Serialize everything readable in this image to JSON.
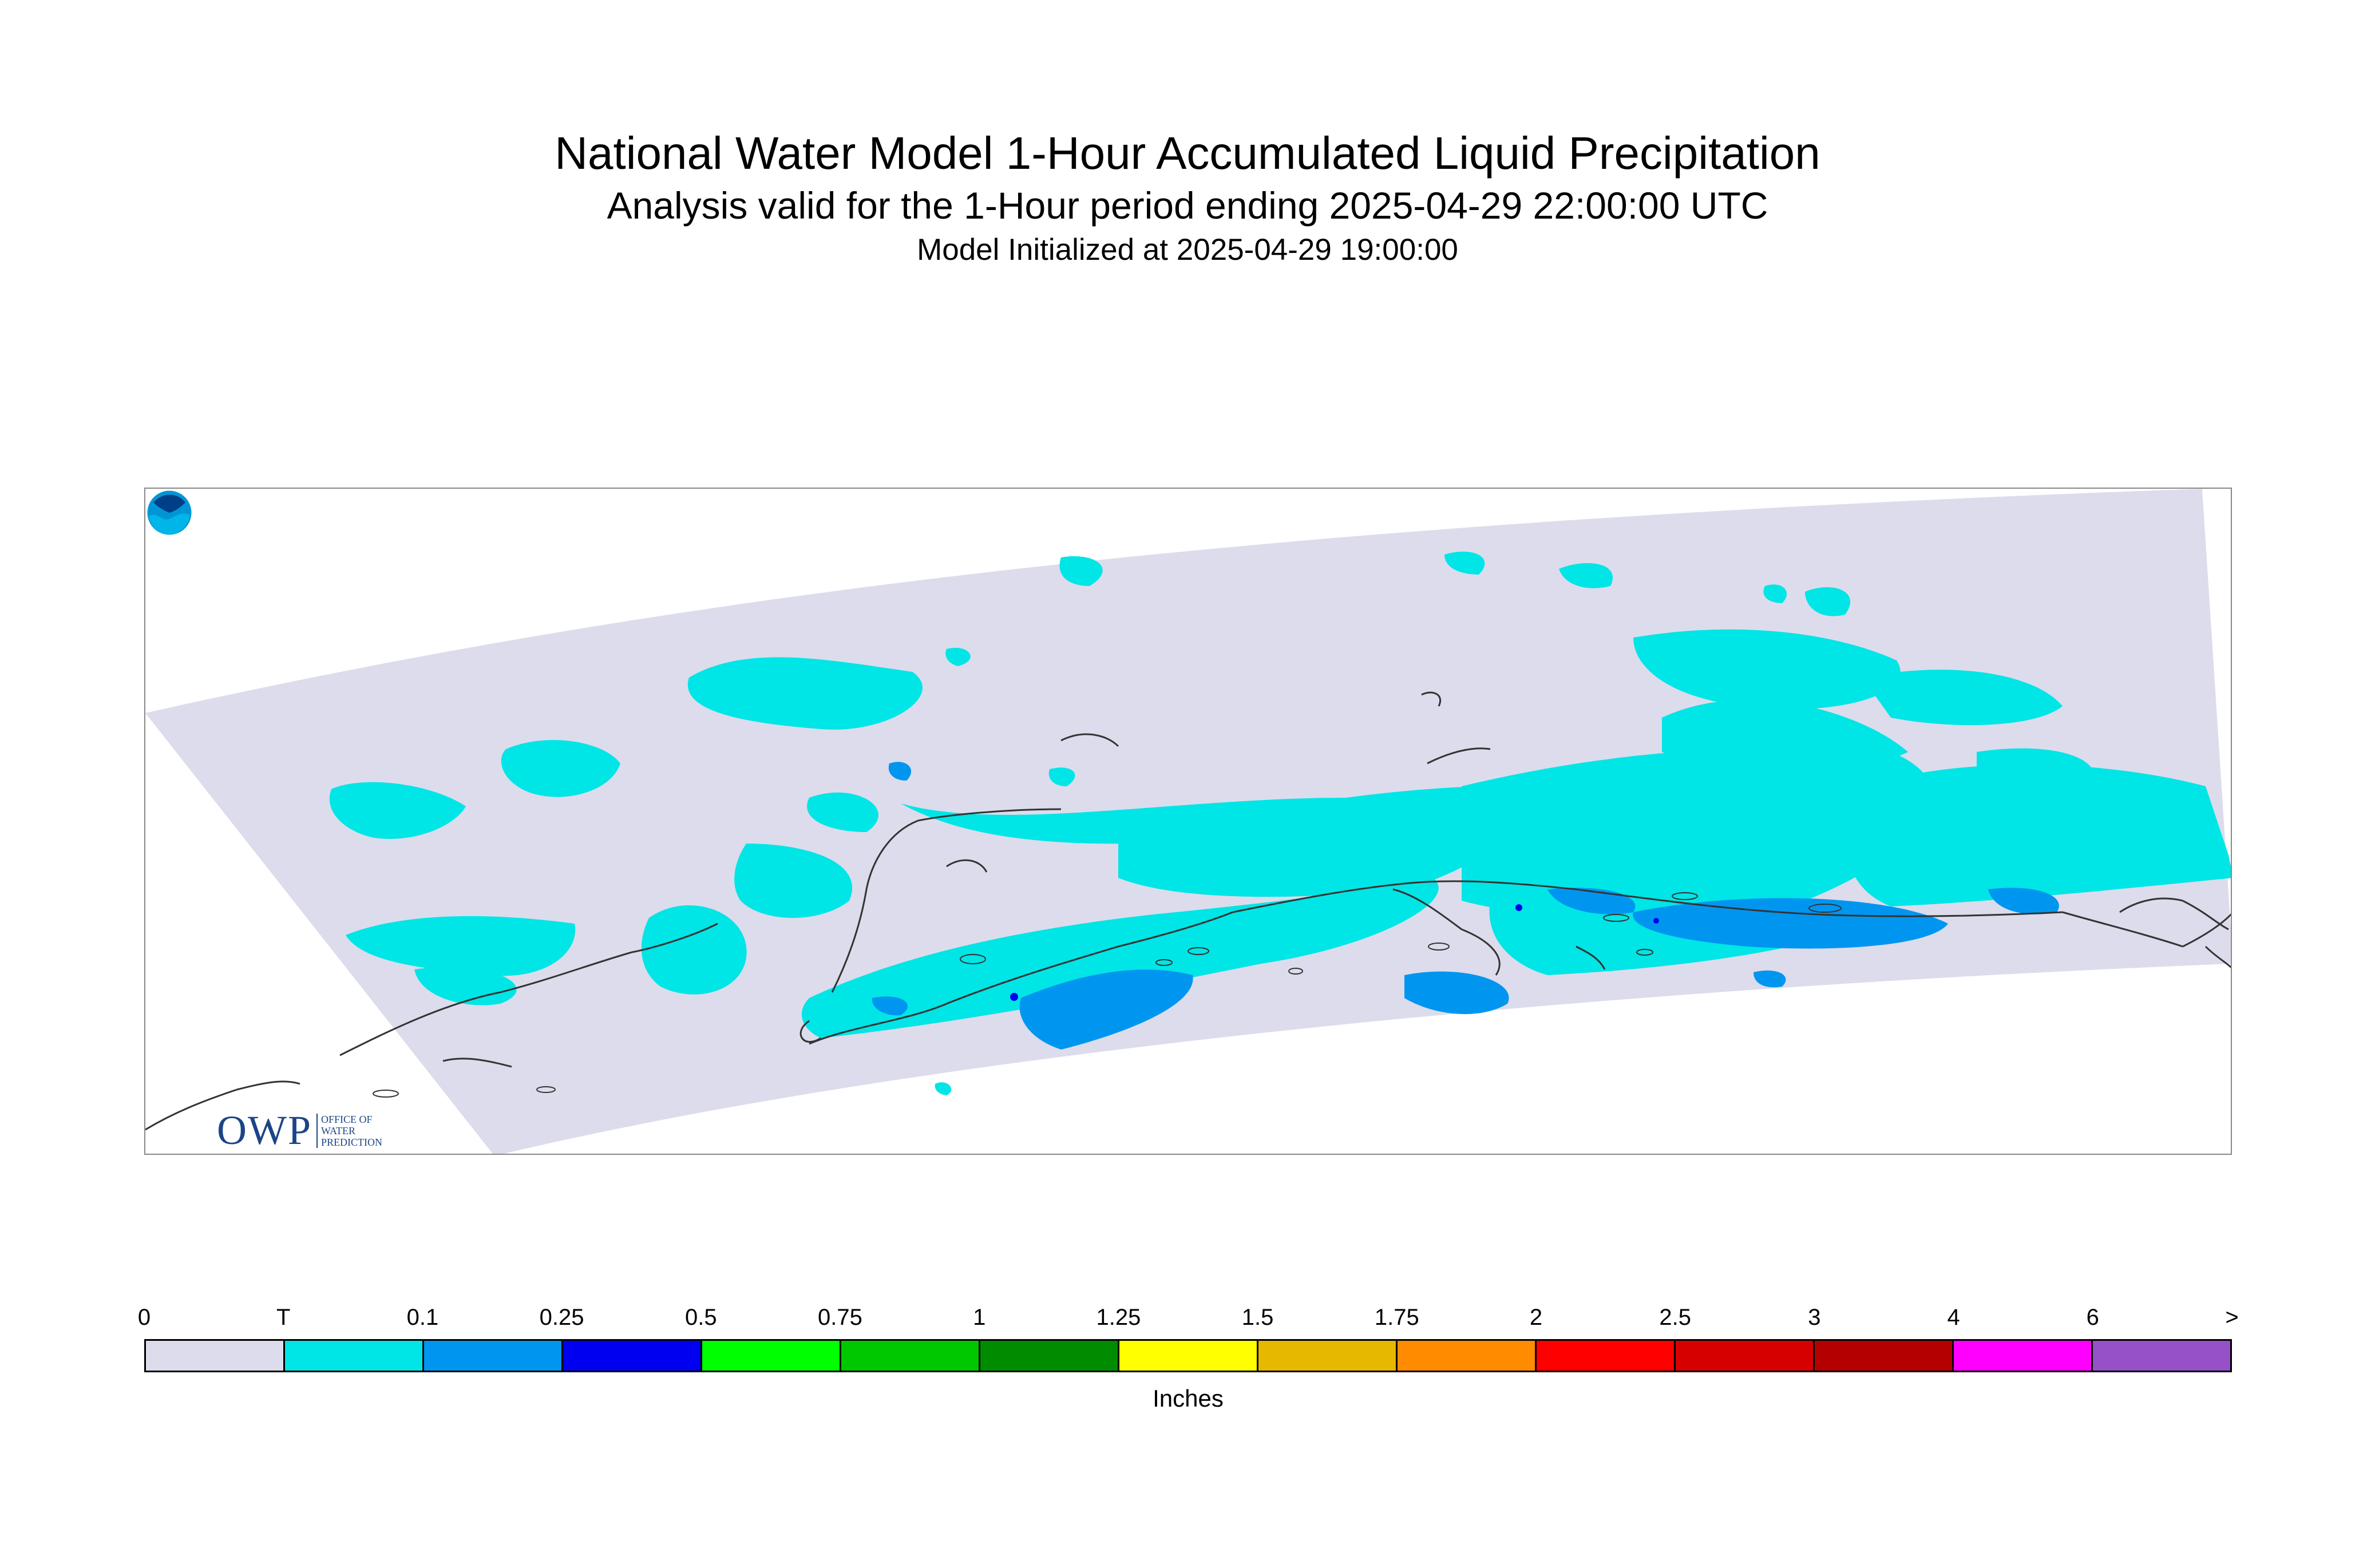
{
  "header": {
    "title": "National Water Model 1-Hour Accumulated Liquid Precipitation",
    "subtitle": "Analysis valid for the 1-Hour period ending 2025-04-29 22:00:00 UTC",
    "init": "Model Initialized at 2025-04-29 19:00:00"
  },
  "logos": {
    "owp_mark": "OWP",
    "owp_sub": "OFFICE OF\nWATER\nPREDICTION"
  },
  "map": {
    "domain_color": "#dcdcec",
    "coast_color": "#333333"
  },
  "legend": {
    "labels": [
      "0",
      "T",
      "0.1",
      "0.25",
      "0.5",
      "0.75",
      "1",
      "1.25",
      "1.5",
      "1.75",
      "2",
      "2.5",
      "3",
      "4",
      "6",
      ">"
    ],
    "colors": [
      "#dcdcec",
      "#00e5e5",
      "#0096f0",
      "#0000f0",
      "#00ff00",
      "#00c800",
      "#008c00",
      "#ffff00",
      "#e6b800",
      "#ff8c00",
      "#ff0000",
      "#d70000",
      "#b40000",
      "#ff00ff",
      "#9650c8"
    ],
    "units": "Inches"
  }
}
